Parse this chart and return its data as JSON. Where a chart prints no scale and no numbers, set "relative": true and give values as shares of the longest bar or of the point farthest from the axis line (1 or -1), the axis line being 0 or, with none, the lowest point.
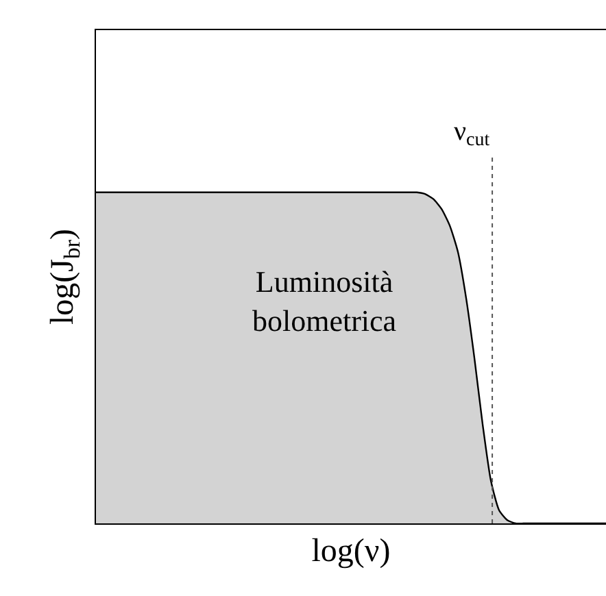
{
  "chart_data": {
    "type": "area",
    "relative": true,
    "xlabel": "log(ν)",
    "ylabel": "log(J$_{br}$)",
    "categories": [
      null,
      null,
      null,
      null,
      null,
      null,
      null,
      null,
      null,
      null,
      null,
      null,
      null,
      null,
      null,
      null,
      null,
      null,
      null,
      null,
      null,
      null,
      null,
      null,
      null,
      null,
      null,
      null,
      null,
      null,
      null,
      null,
      null,
      null,
      null,
      null,
      null,
      null,
      null,
      null,
      null,
      null,
      null,
      null,
      null,
      null,
      null,
      null,
      null,
      null,
      null,
      null,
      null,
      null,
      null,
      null,
      null,
      null,
      null,
      null,
      null,
      null,
      null
    ],
    "series": [
      {
        "color": "#d3d3d3",
        "values": [
          1,
          1,
          1,
          1,
          1,
          1,
          1,
          1,
          1,
          1,
          1,
          1,
          1,
          1,
          1,
          1,
          1,
          1,
          1,
          1,
          1,
          1,
          1,
          1,
          1,
          1,
          1,
          1,
          1,
          1,
          1,
          1,
          1,
          1,
          1,
          1,
          1,
          1,
          1,
          1,
          0.995,
          0.98,
          0.95,
          0.9,
          0.82,
          0.68,
          0.5,
          0.3,
          0.13,
          0.04,
          0.01,
          0,
          0,
          0,
          0,
          0,
          0,
          0,
          0,
          0,
          0,
          0,
          0
        ]
      }
    ],
    "annotations": [
      "Luminosità\nbolometrica",
      "ν$_{cut}$"
    ]
  }
}
